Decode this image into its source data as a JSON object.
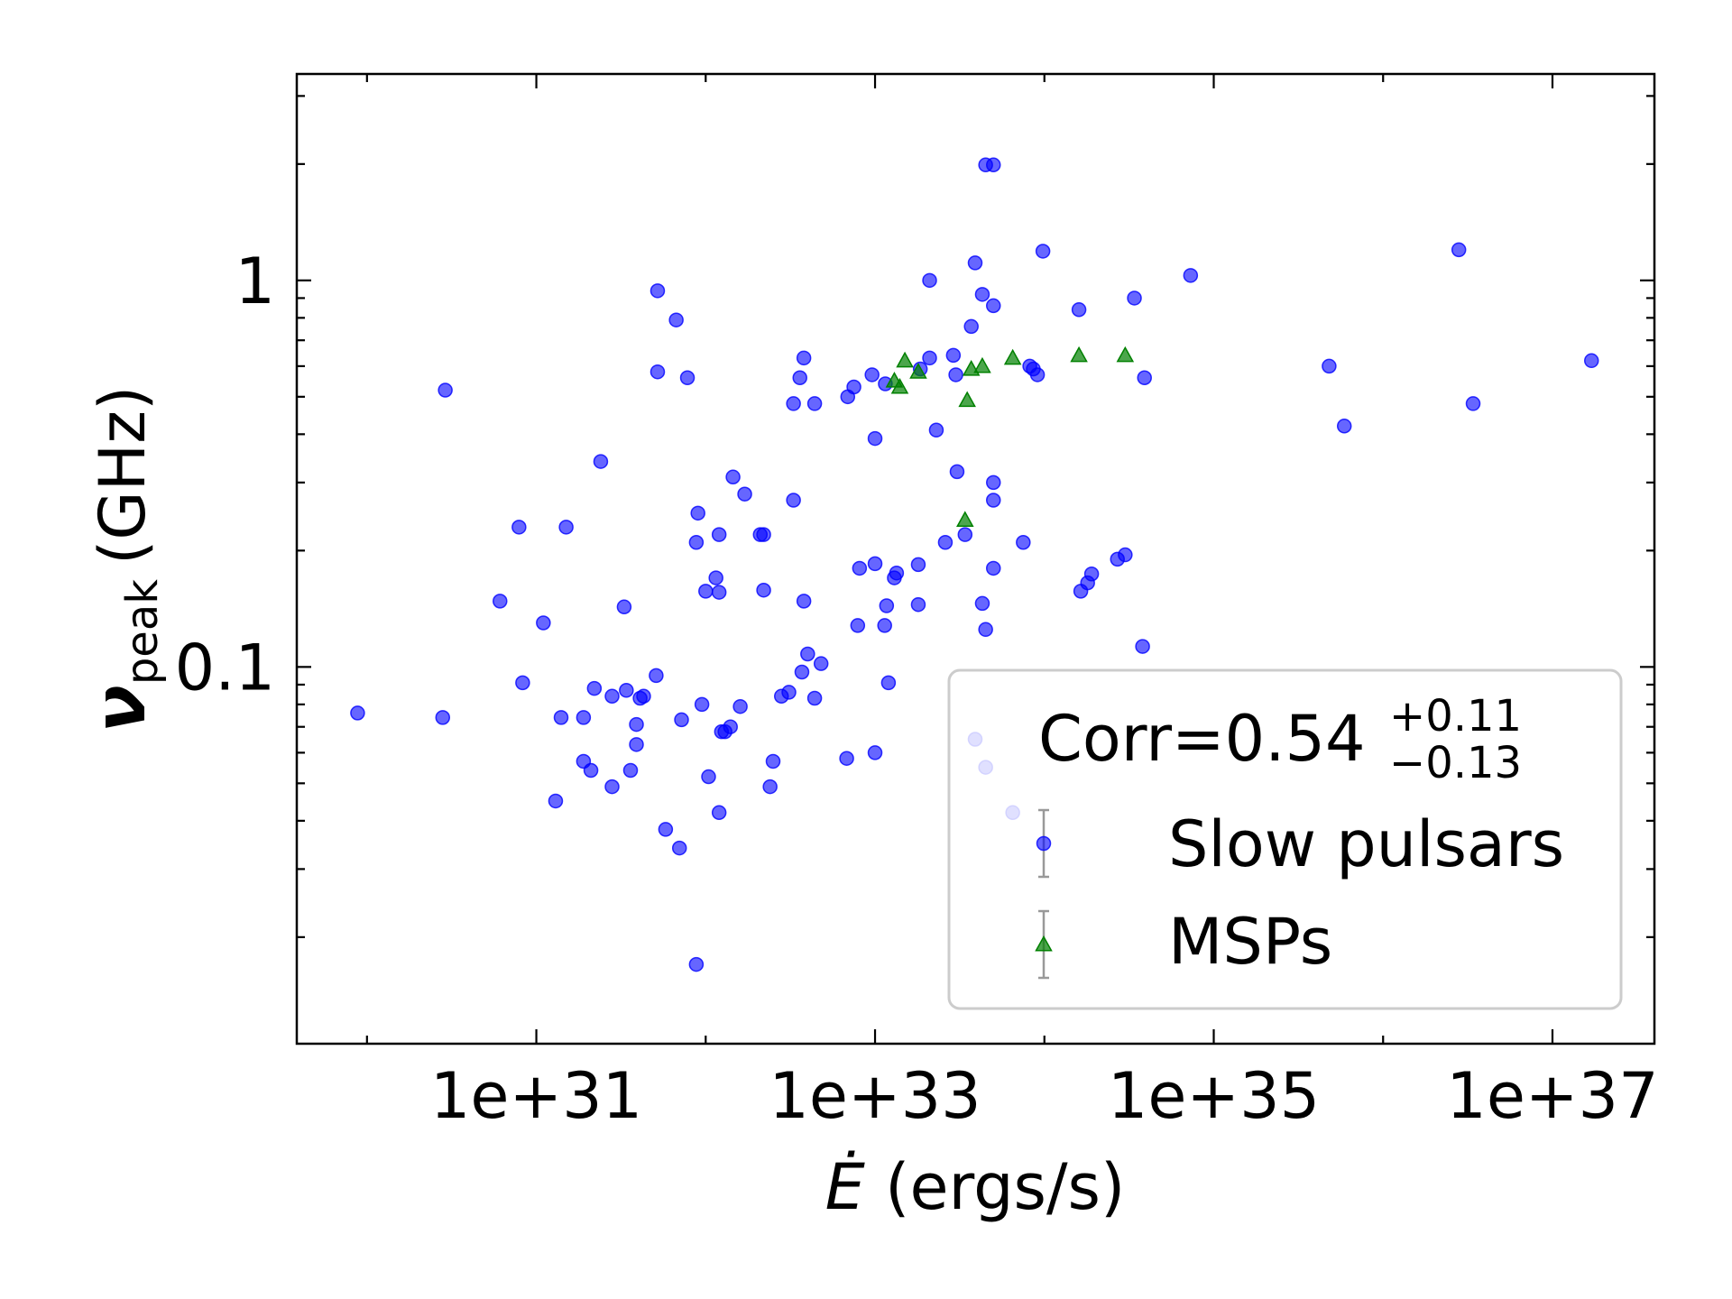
{
  "chart_data": {
    "type": "scatter",
    "xlabel": {
      "symbol": "Ė",
      "unit": "(ergs/s)"
    },
    "ylabel": {
      "symbol": "ν",
      "subscript": "peak",
      "unit": "(GHz)"
    },
    "xlog": true,
    "ylog": true,
    "xlim": [
      3.85e+29,
      4e+37
    ],
    "ylim": [
      0.0106,
      3.42
    ],
    "xticks": [
      {
        "value": 1e+31,
        "label": "1e+31"
      },
      {
        "value": 1e+33,
        "label": "1e+33"
      },
      {
        "value": 1e+35,
        "label": "1e+35"
      },
      {
        "value": 1e+37,
        "label": "1e+37"
      }
    ],
    "xminor": [
      1e+30,
      1e+32,
      1e+34,
      1e+36
    ],
    "yticks": [
      0.1,
      1
    ],
    "yminor": [
      0.02,
      0.03,
      0.04,
      0.05,
      0.06,
      0.07,
      0.08,
      0.09,
      0.2,
      0.3,
      0.4,
      0.5,
      0.6,
      0.7,
      0.8,
      0.9,
      2,
      3
    ],
    "legend": "lower right",
    "annotation": {
      "text": "Corr=0.54",
      "upper": "+0.11",
      "lower": "−0.13"
    },
    "series": [
      {
        "name": "Slow pulsars",
        "color": "#0000ff",
        "marker": "circle",
        "x": [
          8.8e+29,
          2.8e+30,
          2.9e+30,
          6.1e+30,
          7.9e+30,
          8.3e+30,
          1.1e+31,
          1.3e+31,
          1.4e+31,
          1.5e+31,
          1.9e+31,
          1.9e+31,
          2.1e+31,
          2.2e+31,
          2.4e+31,
          2.8e+31,
          2.8e+31,
          3.3e+31,
          3.4e+31,
          3.6e+31,
          3.9e+31,
          3.9e+31,
          4.1e+31,
          4.3e+31,
          5.1e+31,
          5.2e+31,
          5.2e+31,
          5.8e+31,
          6.7e+31,
          7e+31,
          7.2e+31,
          7.8e+31,
          8.8e+31,
          8.8e+31,
          9e+31,
          9.5e+31,
          1e+32,
          1.04e+32,
          1.15e+32,
          1.2e+32,
          1.2e+32,
          1.2e+32,
          1.24e+32,
          1.3e+32,
          1.4e+32,
          1.45e+32,
          1.6e+32,
          1.7e+32,
          2.1e+32,
          2.2e+32,
          2.2e+32,
          2.4e+32,
          2.5e+32,
          2.8e+32,
          3.1e+32,
          3.3e+32,
          3.3e+32,
          3.6e+32,
          3.7e+32,
          3.8e+32,
          3.8e+32,
          4e+32,
          4.4e+32,
          4.4e+32,
          4.8e+32,
          6.8e+32,
          6.9e+32,
          7.5e+32,
          7.9e+32,
          8.1e+32,
          9.6e+32,
          1e+33,
          1e+33,
          1e+33,
          1.14e+33,
          1.15e+33,
          1.17e+33,
          1.2e+33,
          1.3e+33,
          1.34e+33,
          1.8e+33,
          1.8e+33,
          1.85e+33,
          2.1e+33,
          2.1e+33,
          2.3e+33,
          2.6e+33,
          2.9e+33,
          3e+33,
          3.05e+33,
          3.4e+33,
          3.7e+33,
          3.9e+33,
          4.3e+33,
          4.3e+33,
          4.5e+33,
          4.5e+33,
          5e+33,
          5e+33,
          5e+33,
          5e+33,
          5e+33,
          3.9e+33,
          4.5e+33,
          6.5e+33,
          7.5e+33,
          8.2e+33,
          8.6e+33,
          9.1e+33,
          9.8e+33,
          1.6e+34,
          1.64e+34,
          1.8e+34,
          1.9e+34,
          2.7e+34,
          3e+34,
          3.4e+34,
          3.8e+34,
          3.9e+34,
          7.3e+34,
          4.8e+35,
          5.9e+35,
          2.8e+36,
          3.4e+36,
          1.7e+37
        ],
        "y": [
          0.076,
          0.074,
          0.52,
          0.148,
          0.23,
          0.091,
          0.13,
          0.045,
          0.074,
          0.23,
          0.074,
          0.057,
          0.054,
          0.088,
          0.34,
          0.049,
          0.084,
          0.143,
          0.087,
          0.054,
          0.071,
          0.063,
          0.083,
          0.084,
          0.095,
          0.94,
          0.58,
          0.038,
          0.79,
          0.034,
          0.073,
          0.56,
          0.21,
          0.017,
          0.25,
          0.08,
          0.157,
          0.052,
          0.17,
          0.22,
          0.042,
          0.156,
          0.068,
          0.068,
          0.07,
          0.31,
          0.079,
          0.28,
          0.22,
          0.22,
          0.158,
          0.049,
          0.057,
          0.084,
          0.086,
          0.27,
          0.48,
          0.56,
          0.097,
          0.63,
          0.148,
          0.108,
          0.48,
          0.083,
          0.102,
          0.058,
          0.5,
          0.53,
          0.128,
          0.18,
          0.57,
          0.39,
          0.06,
          0.185,
          0.128,
          0.54,
          0.144,
          0.091,
          0.17,
          0.175,
          0.145,
          0.184,
          0.59,
          0.63,
          1.0,
          0.41,
          0.21,
          0.64,
          0.57,
          0.32,
          0.22,
          0.76,
          1.11,
          0.146,
          0.92,
          1.99,
          0.125,
          1.99,
          0.86,
          0.3,
          0.27,
          0.18,
          0.065,
          0.055,
          0.042,
          0.21,
          0.6,
          0.59,
          0.57,
          1.19,
          0.84,
          0.157,
          0.165,
          0.174,
          0.19,
          0.195,
          0.9,
          0.113,
          0.56,
          1.03,
          0.6,
          0.42,
          1.2,
          0.48,
          0.62
        ]
      },
      {
        "name": "MSPs",
        "color": "#008000",
        "marker": "triangle",
        "x": [
          1.3e+33,
          1.4e+33,
          1.5e+33,
          1.8e+33,
          3.4e+33,
          3.5e+33,
          3.7e+33,
          4.3e+33,
          6.5e+33,
          1.6e+34,
          3e+34
        ],
        "y": [
          0.55,
          0.53,
          0.62,
          0.58,
          0.24,
          0.49,
          0.59,
          0.6,
          0.63,
          0.64,
          0.64
        ]
      }
    ]
  }
}
